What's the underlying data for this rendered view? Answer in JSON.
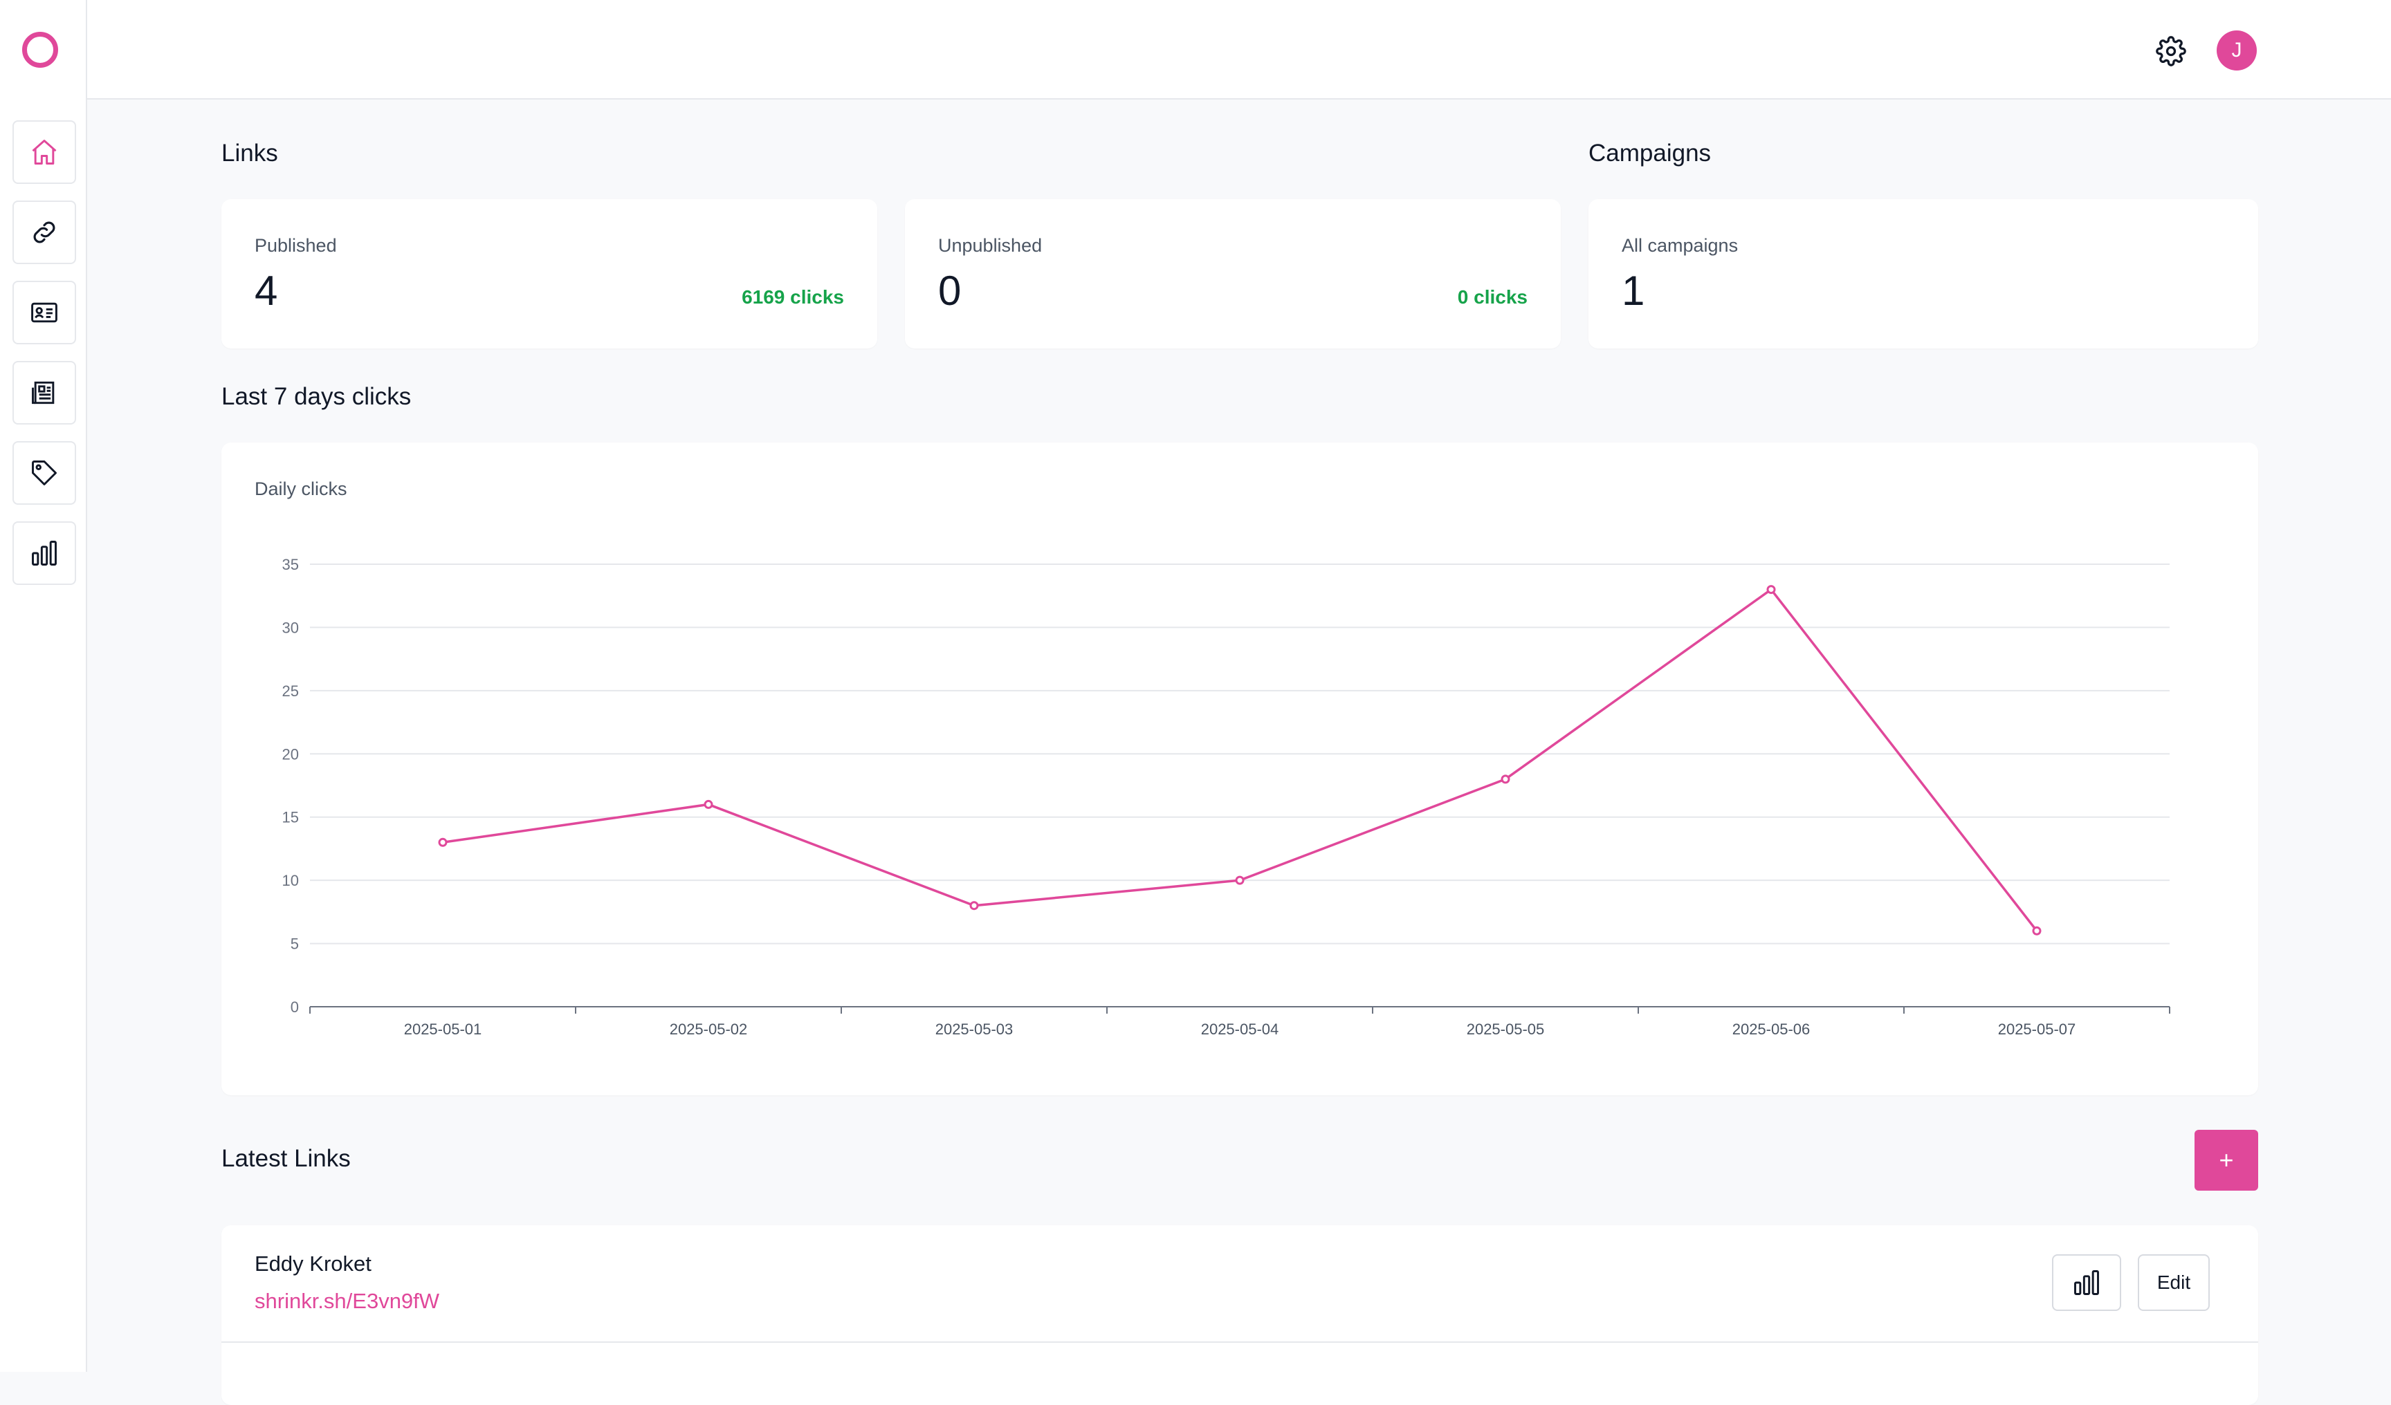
{
  "colors": {
    "accent": "#e0489a",
    "success": "#16a34a",
    "grid": "#e5e7eb",
    "axis": "#6b7280"
  },
  "sidebar": {
    "items": [
      {
        "name": "home",
        "icon": "home-icon",
        "active": true
      },
      {
        "name": "links",
        "icon": "link-icon",
        "active": false
      },
      {
        "name": "contacts",
        "icon": "id-card-icon",
        "active": false
      },
      {
        "name": "articles",
        "icon": "newspaper-icon",
        "active": false
      },
      {
        "name": "tags",
        "icon": "tag-icon",
        "active": false
      },
      {
        "name": "analytics",
        "icon": "bar-chart-icon",
        "active": false
      }
    ]
  },
  "topbar": {
    "avatar_initial": "J",
    "settings_icon": "gear-icon"
  },
  "links_section": {
    "title": "Links",
    "published": {
      "label": "Published",
      "value": "4",
      "clicks": "6169 clicks"
    },
    "unpublished": {
      "label": "Unpublished",
      "value": "0",
      "clicks": "0 clicks"
    }
  },
  "campaigns_section": {
    "title": "Campaigns",
    "all": {
      "label": "All campaigns",
      "value": "1"
    }
  },
  "chart_section": {
    "title": "Last 7 days clicks",
    "chart_label": "Daily clicks"
  },
  "chart_data": {
    "type": "line",
    "title": "Daily clicks",
    "x": [
      "2025-05-01",
      "2025-05-02",
      "2025-05-03",
      "2025-05-04",
      "2025-05-05",
      "2025-05-06",
      "2025-05-07"
    ],
    "series": [
      {
        "values": [
          13,
          16,
          8,
          10,
          18,
          33,
          6
        ]
      }
    ],
    "ylim": [
      0,
      35
    ],
    "yticks": [
      0,
      5,
      10,
      15,
      20,
      25,
      30,
      35
    ],
    "grid": true,
    "legend": "none"
  },
  "latest_links": {
    "title": "Latest Links",
    "add_label": "+",
    "items": [
      {
        "name": "Eddy Kroket",
        "url": "shrinkr.sh/E3vn9fW",
        "edit_label": "Edit"
      }
    ]
  }
}
